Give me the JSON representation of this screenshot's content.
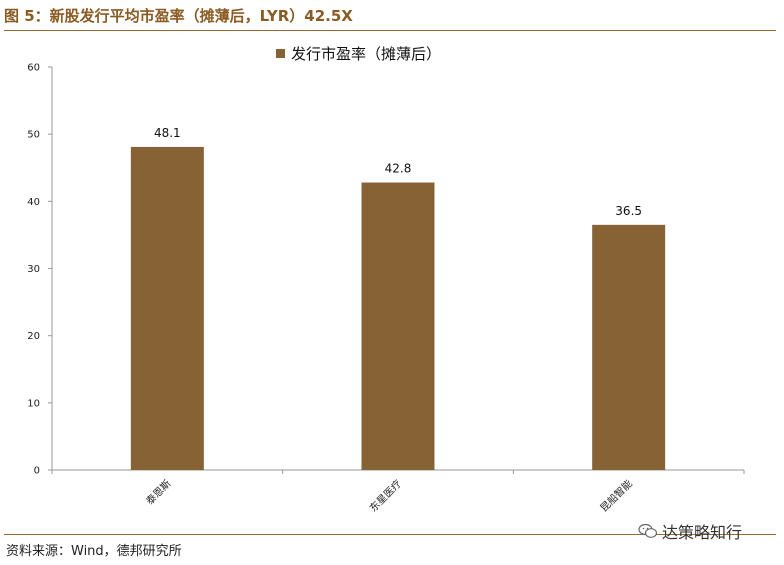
{
  "figure": {
    "title": "图 5：新股发行平均市盈率（摊薄后，LYR）42.5X",
    "source": "资料来源：Wind，德邦研究所",
    "watermark": "达策略知行"
  },
  "colors": {
    "bar": "#876235",
    "accent": "#8a5b22",
    "axis": "#999999"
  },
  "chart_data": {
    "type": "bar",
    "title": "",
    "legend": [
      "发行市盈率（摊薄后）"
    ],
    "categories": [
      "泰恩斯",
      "东星医疗",
      "昆船智能"
    ],
    "series": [
      {
        "name": "发行市盈率（摊薄后）",
        "values": [
          48.1,
          42.8,
          36.5
        ]
      }
    ],
    "value_labels": [
      "48.1",
      "42.8",
      "36.5"
    ],
    "yticks": [
      "0",
      "10",
      "20",
      "30",
      "40",
      "50",
      "60"
    ],
    "ylim": [
      0,
      60
    ],
    "xlabel": "",
    "ylabel": "",
    "legend_position": "top-center",
    "grid": false
  }
}
